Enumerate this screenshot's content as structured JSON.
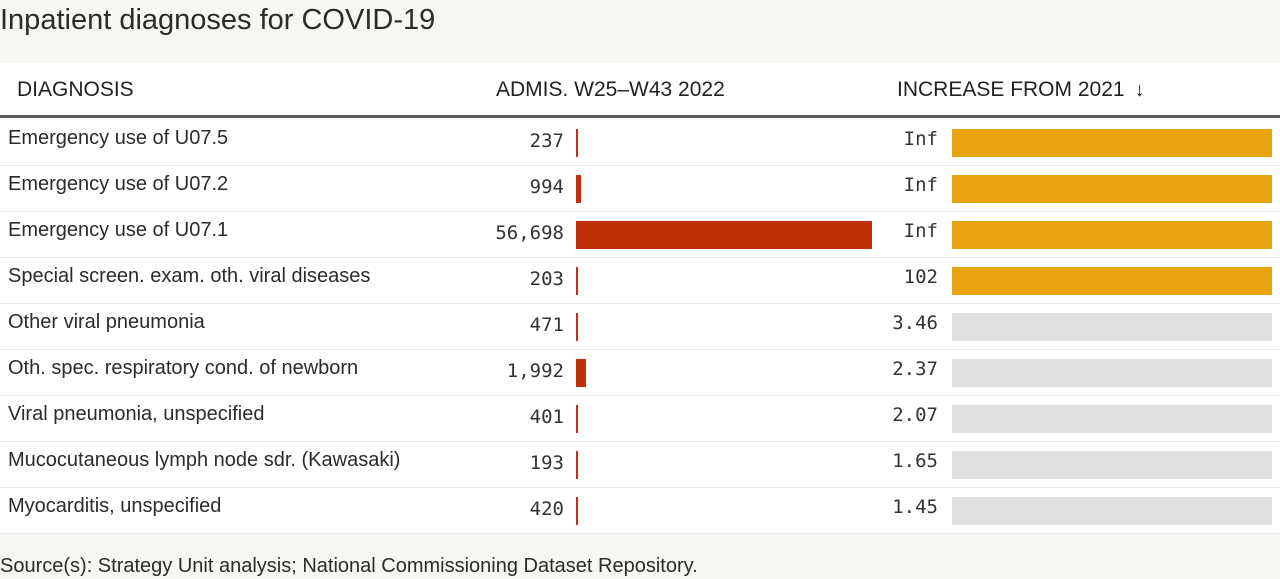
{
  "title": "Inpatient diagnoses for COVID-19",
  "headers": {
    "diagnosis": "DIAGNOSIS",
    "admissions": "ADMIS. W25–W43 2022",
    "increase": "INCREASE FROM 2021",
    "sort_icon": "↓"
  },
  "colors": {
    "admissions_bar": "#bf3209",
    "increase_bar": "#e8a30f",
    "increase_bar_baseline": "#e0e0e0"
  },
  "source": "Source(s): Strategy Unit analysis; National Commissioning Dataset Repository.",
  "rows": [
    {
      "diagnosis": "Emergency use of U07.5",
      "admissions_label": "237",
      "increase_label": "Inf"
    },
    {
      "diagnosis": "Emergency use of U07.2",
      "admissions_label": "994",
      "increase_label": "Inf"
    },
    {
      "diagnosis": "Emergency use of U07.1",
      "admissions_label": "56,698",
      "increase_label": "Inf"
    },
    {
      "diagnosis": "Special screen. exam. oth. viral diseases",
      "admissions_label": "203",
      "increase_label": "102"
    },
    {
      "diagnosis": "Other viral pneumonia",
      "admissions_label": "471",
      "increase_label": "3.46"
    },
    {
      "diagnosis": "Oth. spec. respiratory cond. of newborn",
      "admissions_label": "1,992",
      "increase_label": "2.37"
    },
    {
      "diagnosis": "Viral pneumonia, unspecified",
      "admissions_label": "401",
      "increase_label": "2.07"
    },
    {
      "diagnosis": "Mucocutaneous lymph node sdr. (Kawasaki)",
      "admissions_label": "193",
      "increase_label": "1.65"
    },
    {
      "diagnosis": "Myocarditis, unspecified",
      "admissions_label": "420",
      "increase_label": "1.45"
    }
  ],
  "chart_data": {
    "type": "table",
    "categories": [
      "Emergency use of U07.5",
      "Emergency use of U07.2",
      "Emergency use of U07.1",
      "Special screen. exam. oth. viral diseases",
      "Other viral pneumonia",
      "Oth. spec. respiratory cond. of newborn",
      "Viral pneumonia, unspecified",
      "Mucocutaneous lymph node sdr. (Kawasaki)",
      "Myocarditis, unspecified"
    ],
    "series": [
      {
        "name": "ADMIS. W25–W43 2022",
        "values": [
          237,
          994,
          56698,
          203,
          471,
          1992,
          401,
          193,
          420
        ]
      },
      {
        "name": "INCREASE FROM 2021",
        "values": [
          "Inf",
          "Inf",
          "Inf",
          102,
          3.46,
          2.37,
          2.07,
          1.65,
          1.45
        ]
      }
    ],
    "sorted_by": "INCREASE FROM 2021",
    "sort_direction": "descending"
  }
}
